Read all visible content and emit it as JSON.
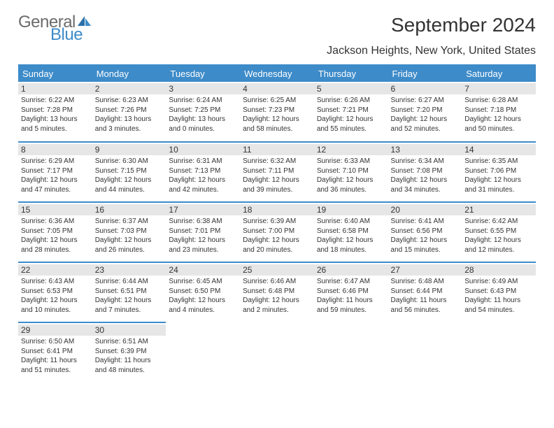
{
  "logo": {
    "general": "General",
    "blue": "Blue"
  },
  "title": "September 2024",
  "subtitle": "Jackson Heights, New York, United States",
  "colors": {
    "header_bg": "#3d8bc9",
    "header_text": "#ffffff",
    "daynum_bg": "#e6e6e6",
    "logo_gray": "#6b6b6b",
    "logo_blue": "#3d8bc9",
    "border": "#3d8bc9",
    "body_text": "#333333",
    "page_bg": "#ffffff"
  },
  "typography": {
    "title_fontsize": 28,
    "subtitle_fontsize": 16,
    "weekday_fontsize": 13,
    "daynum_fontsize": 12,
    "info_fontsize": 10,
    "logo_fontsize": 24
  },
  "weekdays": [
    "Sunday",
    "Monday",
    "Tuesday",
    "Wednesday",
    "Thursday",
    "Friday",
    "Saturday"
  ],
  "days": [
    {
      "n": "1",
      "sr": "6:22 AM",
      "ss": "7:28 PM",
      "dl": "13 hours and 5 minutes."
    },
    {
      "n": "2",
      "sr": "6:23 AM",
      "ss": "7:26 PM",
      "dl": "13 hours and 3 minutes."
    },
    {
      "n": "3",
      "sr": "6:24 AM",
      "ss": "7:25 PM",
      "dl": "13 hours and 0 minutes."
    },
    {
      "n": "4",
      "sr": "6:25 AM",
      "ss": "7:23 PM",
      "dl": "12 hours and 58 minutes."
    },
    {
      "n": "5",
      "sr": "6:26 AM",
      "ss": "7:21 PM",
      "dl": "12 hours and 55 minutes."
    },
    {
      "n": "6",
      "sr": "6:27 AM",
      "ss": "7:20 PM",
      "dl": "12 hours and 52 minutes."
    },
    {
      "n": "7",
      "sr": "6:28 AM",
      "ss": "7:18 PM",
      "dl": "12 hours and 50 minutes."
    },
    {
      "n": "8",
      "sr": "6:29 AM",
      "ss": "7:17 PM",
      "dl": "12 hours and 47 minutes."
    },
    {
      "n": "9",
      "sr": "6:30 AM",
      "ss": "7:15 PM",
      "dl": "12 hours and 44 minutes."
    },
    {
      "n": "10",
      "sr": "6:31 AM",
      "ss": "7:13 PM",
      "dl": "12 hours and 42 minutes."
    },
    {
      "n": "11",
      "sr": "6:32 AM",
      "ss": "7:11 PM",
      "dl": "12 hours and 39 minutes."
    },
    {
      "n": "12",
      "sr": "6:33 AM",
      "ss": "7:10 PM",
      "dl": "12 hours and 36 minutes."
    },
    {
      "n": "13",
      "sr": "6:34 AM",
      "ss": "7:08 PM",
      "dl": "12 hours and 34 minutes."
    },
    {
      "n": "14",
      "sr": "6:35 AM",
      "ss": "7:06 PM",
      "dl": "12 hours and 31 minutes."
    },
    {
      "n": "15",
      "sr": "6:36 AM",
      "ss": "7:05 PM",
      "dl": "12 hours and 28 minutes."
    },
    {
      "n": "16",
      "sr": "6:37 AM",
      "ss": "7:03 PM",
      "dl": "12 hours and 26 minutes."
    },
    {
      "n": "17",
      "sr": "6:38 AM",
      "ss": "7:01 PM",
      "dl": "12 hours and 23 minutes."
    },
    {
      "n": "18",
      "sr": "6:39 AM",
      "ss": "7:00 PM",
      "dl": "12 hours and 20 minutes."
    },
    {
      "n": "19",
      "sr": "6:40 AM",
      "ss": "6:58 PM",
      "dl": "12 hours and 18 minutes."
    },
    {
      "n": "20",
      "sr": "6:41 AM",
      "ss": "6:56 PM",
      "dl": "12 hours and 15 minutes."
    },
    {
      "n": "21",
      "sr": "6:42 AM",
      "ss": "6:55 PM",
      "dl": "12 hours and 12 minutes."
    },
    {
      "n": "22",
      "sr": "6:43 AM",
      "ss": "6:53 PM",
      "dl": "12 hours and 10 minutes."
    },
    {
      "n": "23",
      "sr": "6:44 AM",
      "ss": "6:51 PM",
      "dl": "12 hours and 7 minutes."
    },
    {
      "n": "24",
      "sr": "6:45 AM",
      "ss": "6:50 PM",
      "dl": "12 hours and 4 minutes."
    },
    {
      "n": "25",
      "sr": "6:46 AM",
      "ss": "6:48 PM",
      "dl": "12 hours and 2 minutes."
    },
    {
      "n": "26",
      "sr": "6:47 AM",
      "ss": "6:46 PM",
      "dl": "11 hours and 59 minutes."
    },
    {
      "n": "27",
      "sr": "6:48 AM",
      "ss": "6:44 PM",
      "dl": "11 hours and 56 minutes."
    },
    {
      "n": "28",
      "sr": "6:49 AM",
      "ss": "6:43 PM",
      "dl": "11 hours and 54 minutes."
    },
    {
      "n": "29",
      "sr": "6:50 AM",
      "ss": "6:41 PM",
      "dl": "11 hours and 51 minutes."
    },
    {
      "n": "30",
      "sr": "6:51 AM",
      "ss": "6:39 PM",
      "dl": "11 hours and 48 minutes."
    }
  ],
  "labels": {
    "sunrise": "Sunrise:",
    "sunset": "Sunset:",
    "daylight": "Daylight:"
  }
}
